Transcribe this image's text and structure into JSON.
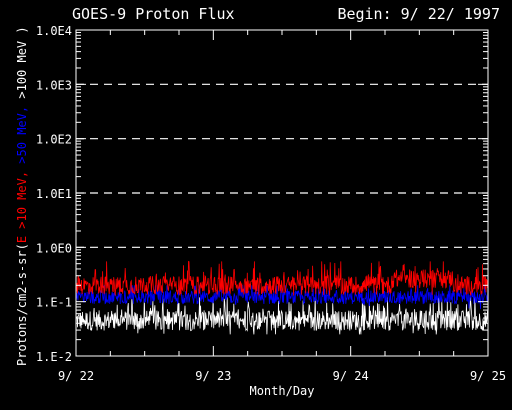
{
  "chart_data": {
    "type": "line",
    "title": "GOES-9 Proton Flux",
    "begin_label": "Begin: 9/ 22/ 1997",
    "xlabel": "Month/Day",
    "ylabel_parts": [
      {
        "text": "Protons/cm2-s-sr(",
        "color": "#ffffff"
      },
      {
        "text": "E >10 MeV, ",
        "color": "#ff0000"
      },
      {
        "text": ">50 MeV, ",
        "color": "#0000ff"
      },
      {
        "text": ">100 MeV )",
        "color": "#ffffff"
      }
    ],
    "yscale": "log",
    "ylim": [
      0.01,
      10000
    ],
    "yticks": [
      {
        "value": 0.01,
        "label": "1.E-2"
      },
      {
        "value": 0.1,
        "label": "1.E-1"
      },
      {
        "value": 1,
        "label": "1.0E0"
      },
      {
        "value": 10,
        "label": "1.0E1"
      },
      {
        "value": 100,
        "label": "1.0E2"
      },
      {
        "value": 1000,
        "label": "1.0E3"
      },
      {
        "value": 10000,
        "label": "1.0E4"
      }
    ],
    "xlim": [
      0,
      3
    ],
    "xticks": [
      {
        "value": 0,
        "label": "9/ 22"
      },
      {
        "value": 1,
        "label": "9/ 23"
      },
      {
        "value": 2,
        "label": "9/ 24"
      },
      {
        "value": 3,
        "label": "9/ 25"
      }
    ],
    "grid": "dashed horizontal lines at 1, 10, 100, 1000",
    "background_color": "#000000",
    "series": [
      {
        "color": "#ffffff",
        "typical_value": 0.045,
        "range": [
          0.025,
          0.12
        ]
      },
      {
        "color": "#0000ff",
        "typical_value": 0.12,
        "range": [
          0.07,
          0.2
        ]
      },
      {
        "color": "#ff0000",
        "typical_value": 0.2,
        "range": [
          0.13,
          0.55
        ]
      }
    ]
  }
}
